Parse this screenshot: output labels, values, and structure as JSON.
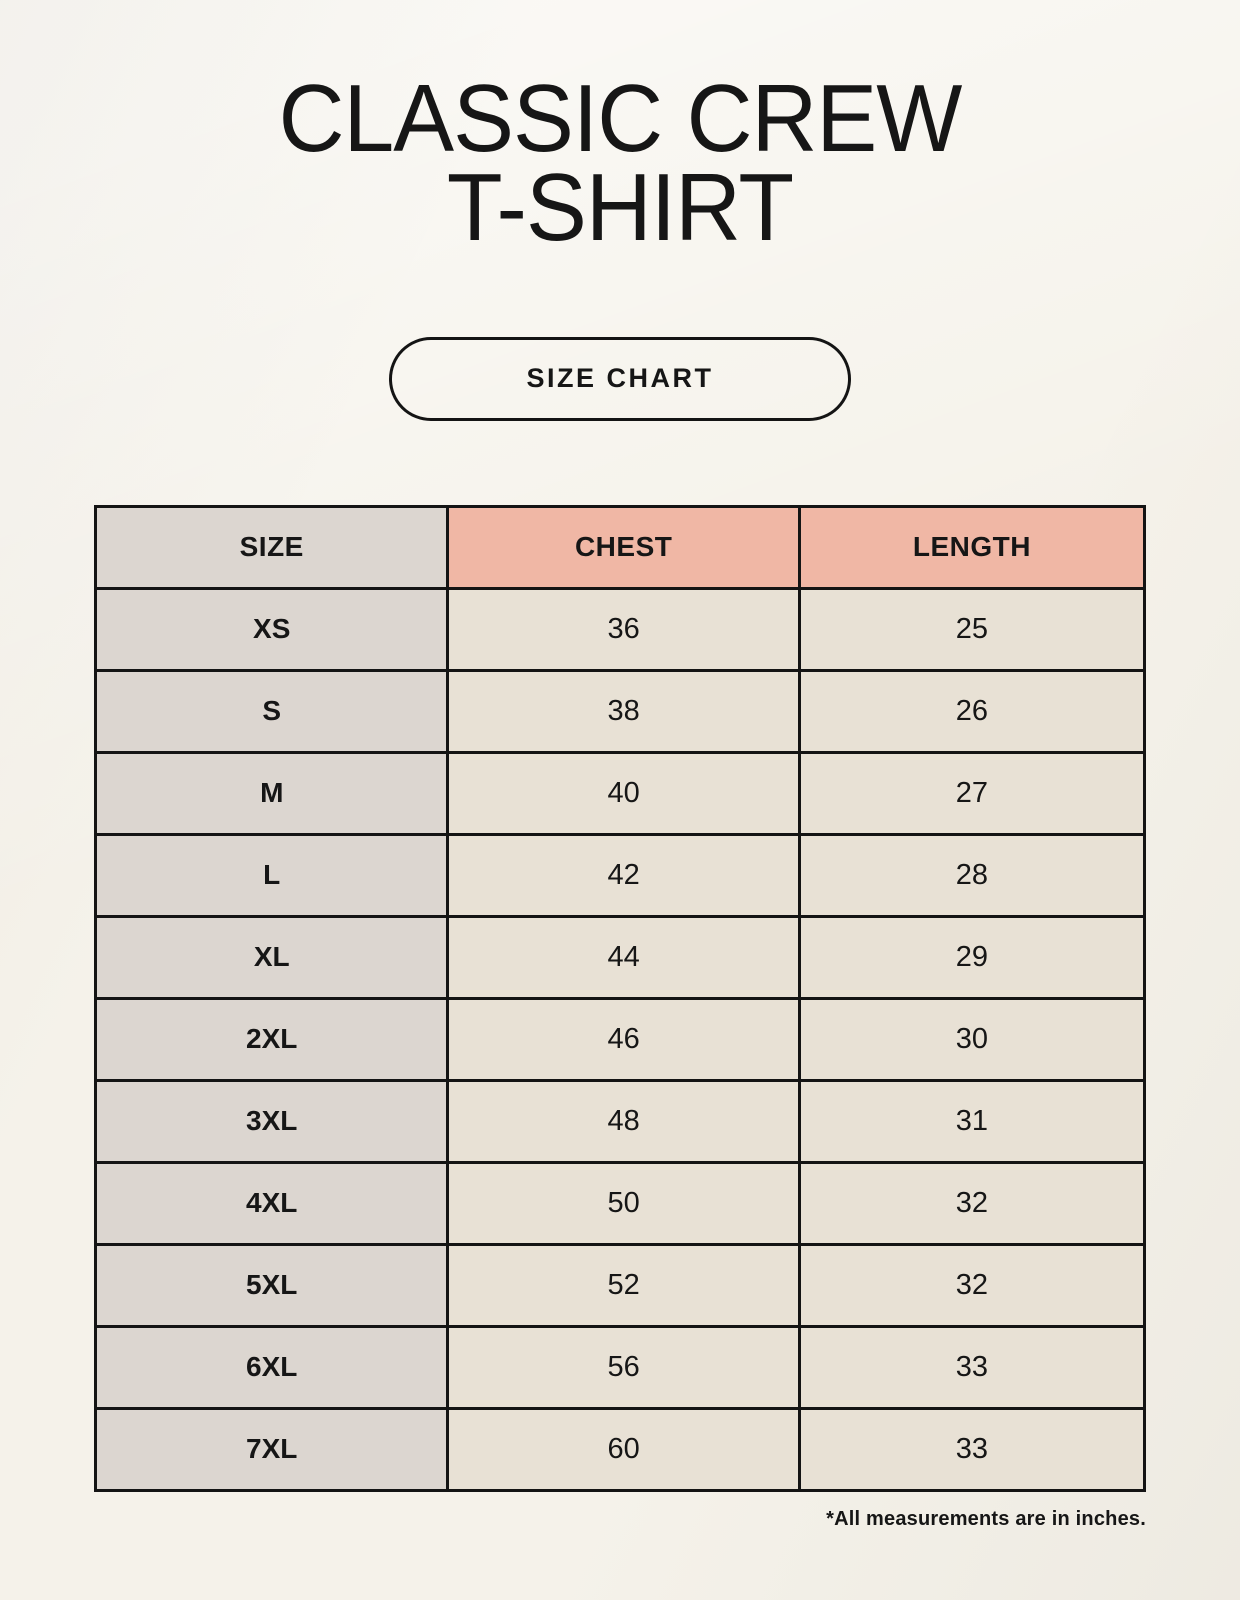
{
  "page": {
    "title_line1": "CLASSIC CREW",
    "title_line2": "T-SHIRT",
    "size_chart_button_label": "SIZE CHART",
    "footnote": "*All measurements are in inches."
  },
  "table": {
    "headers": {
      "size": "SIZE",
      "chest": "CHEST",
      "length": "LENGTH"
    },
    "rows": [
      {
        "size": "XS",
        "chest": "36",
        "length": "25"
      },
      {
        "size": "S",
        "chest": "38",
        "length": "26"
      },
      {
        "size": "M",
        "chest": "40",
        "length": "27"
      },
      {
        "size": "L",
        "chest": "42",
        "length": "28"
      },
      {
        "size": "XL",
        "chest": "44",
        "length": "29"
      },
      {
        "size": "2XL",
        "chest": "46",
        "length": "30"
      },
      {
        "size": "3XL",
        "chest": "48",
        "length": "31"
      },
      {
        "size": "4XL",
        "chest": "50",
        "length": "32"
      },
      {
        "size": "5XL",
        "chest": "52",
        "length": "32"
      },
      {
        "size": "6XL",
        "chest": "56",
        "length": "33"
      },
      {
        "size": "7XL",
        "chest": "60",
        "length": "33"
      }
    ]
  },
  "colors": {
    "page_bg": "#f5f2ea",
    "label_col_bg": "#dcd6d0",
    "value_col_bg": "#e8e1d5",
    "header_accent_bg": "#f0b7a5",
    "border": "#141414",
    "text": "#161616"
  }
}
